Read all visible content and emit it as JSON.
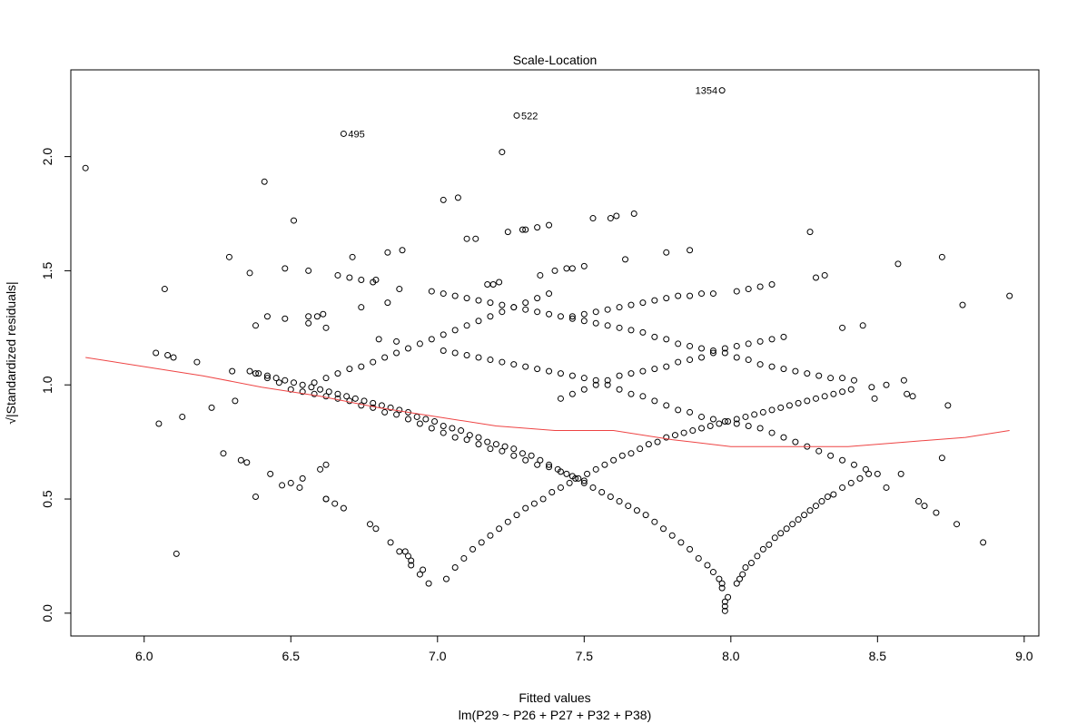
{
  "chart_data": {
    "type": "scatter",
    "title": "Scale-Location",
    "xlabel": "Fitted values",
    "subtitle": "lm(P29 ~ P26 + P27 + P32 + P38)",
    "ylabel": "√|Standardized residuals|",
    "xlim": [
      5.75,
      9.05
    ],
    "ylim": [
      -0.1,
      2.38
    ],
    "x_ticks": [
      "6.0",
      "6.5",
      "7.0",
      "7.5",
      "8.0",
      "8.5",
      "9.0"
    ],
    "x_tick_values": [
      6.0,
      6.5,
      7.0,
      7.5,
      8.0,
      8.5,
      9.0
    ],
    "y_ticks": [
      "0.0",
      "0.5",
      "1.0",
      "1.5",
      "2.0"
    ],
    "y_tick_values": [
      0.0,
      0.5,
      1.0,
      1.5,
      2.0
    ],
    "grid": false,
    "point_color": "#000000",
    "smooth_color": "#ee4444",
    "labeled_points": [
      {
        "label": "1354",
        "x": 7.97,
        "y": 2.29
      },
      {
        "label": "522",
        "x": 7.27,
        "y": 2.18
      },
      {
        "label": "495",
        "x": 6.68,
        "y": 2.1
      }
    ],
    "points": [
      [
        5.8,
        1.95
      ],
      [
        6.04,
        1.14
      ],
      [
        6.05,
        0.83
      ],
      [
        6.07,
        1.42
      ],
      [
        6.08,
        1.13
      ],
      [
        6.1,
        1.12
      ],
      [
        6.11,
        0.26
      ],
      [
        6.13,
        0.86
      ],
      [
        6.18,
        1.1
      ],
      [
        6.23,
        0.9
      ],
      [
        6.27,
        0.7
      ],
      [
        6.29,
        1.56
      ],
      [
        6.3,
        1.06
      ],
      [
        6.31,
        0.93
      ],
      [
        6.33,
        0.67
      ],
      [
        6.35,
        0.66
      ],
      [
        6.36,
        1.49
      ],
      [
        6.38,
        1.26
      ],
      [
        6.38,
        0.51
      ],
      [
        6.41,
        1.89
      ],
      [
        6.42,
        1.3
      ],
      [
        6.43,
        0.61
      ],
      [
        6.47,
        0.56
      ],
      [
        6.48,
        1.29
      ],
      [
        6.48,
        1.51
      ],
      [
        6.5,
        0.57
      ],
      [
        6.51,
        1.72
      ],
      [
        6.53,
        0.55
      ],
      [
        6.54,
        0.59
      ],
      [
        6.56,
        1.5
      ],
      [
        6.56,
        1.27
      ],
      [
        6.56,
        1.3
      ],
      [
        6.59,
        1.3
      ],
      [
        6.6,
        0.63
      ],
      [
        6.61,
        1.31
      ],
      [
        6.62,
        1.25
      ],
      [
        6.62,
        0.65
      ],
      [
        6.62,
        0.5
      ],
      [
        6.71,
        1.56
      ],
      [
        6.74,
        1.34
      ],
      [
        6.77,
        0.39
      ],
      [
        6.79,
        0.37
      ],
      [
        6.79,
        1.46
      ],
      [
        6.8,
        1.2
      ],
      [
        6.83,
        1.58
      ],
      [
        6.83,
        1.36
      ],
      [
        6.86,
        1.19
      ],
      [
        6.88,
        1.59
      ],
      [
        6.89,
        0.27
      ],
      [
        6.9,
        0.25
      ],
      [
        6.91,
        0.23
      ],
      [
        6.95,
        0.19
      ],
      [
        7.02,
        1.81
      ],
      [
        7.07,
        1.82
      ],
      [
        7.1,
        1.64
      ],
      [
        7.13,
        1.64
      ],
      [
        7.17,
        1.44
      ],
      [
        7.19,
        1.44
      ],
      [
        7.21,
        1.45
      ],
      [
        7.22,
        2.02
      ],
      [
        7.24,
        1.67
      ],
      [
        7.29,
        1.68
      ],
      [
        7.3,
        1.68
      ],
      [
        7.34,
        1.69
      ],
      [
        7.35,
        1.48
      ],
      [
        7.38,
        1.7
      ],
      [
        7.4,
        1.5
      ],
      [
        7.44,
        1.51
      ],
      [
        7.46,
        1.51
      ],
      [
        7.5,
        1.52
      ],
      [
        7.53,
        1.73
      ],
      [
        7.59,
        1.73
      ],
      [
        7.61,
        1.74
      ],
      [
        7.64,
        1.55
      ],
      [
        7.67,
        1.75
      ],
      [
        7.78,
        1.58
      ],
      [
        7.86,
        1.59
      ],
      [
        8.27,
        1.67
      ],
      [
        8.29,
        1.47
      ],
      [
        8.32,
        1.48
      ],
      [
        8.38,
        1.25
      ],
      [
        8.45,
        1.26
      ],
      [
        8.48,
        0.99
      ],
      [
        8.49,
        0.94
      ],
      [
        8.53,
        1.0
      ],
      [
        8.53,
        0.55
      ],
      [
        8.57,
        1.53
      ],
      [
        8.58,
        0.61
      ],
      [
        8.59,
        1.02
      ],
      [
        8.6,
        0.96
      ],
      [
        8.62,
        0.95
      ],
      [
        8.64,
        0.49
      ],
      [
        8.66,
        0.47
      ],
      [
        8.7,
        0.44
      ],
      [
        8.72,
        1.56
      ],
      [
        8.72,
        0.68
      ],
      [
        8.74,
        0.91
      ],
      [
        8.77,
        0.39
      ],
      [
        8.79,
        1.35
      ],
      [
        8.86,
        0.31
      ],
      [
        8.95,
        1.39
      ],
      [
        7.98,
        0.01
      ],
      [
        7.98,
        0.03
      ],
      [
        7.98,
        0.05
      ],
      [
        7.99,
        0.07
      ],
      [
        7.97,
        0.11
      ],
      [
        7.97,
        0.13
      ],
      [
        7.96,
        0.15
      ],
      [
        8.02,
        0.13
      ],
      [
        8.03,
        0.15
      ],
      [
        8.04,
        0.17
      ],
      [
        8.05,
        0.2
      ],
      [
        8.07,
        0.22
      ],
      [
        8.09,
        0.25
      ],
      [
        8.11,
        0.28
      ],
      [
        8.13,
        0.3
      ],
      [
        8.15,
        0.33
      ],
      [
        8.17,
        0.35
      ],
      [
        8.19,
        0.37
      ],
      [
        8.21,
        0.39
      ],
      [
        8.23,
        0.41
      ],
      [
        8.25,
        0.43
      ],
      [
        8.27,
        0.45
      ],
      [
        8.29,
        0.47
      ],
      [
        8.31,
        0.49
      ],
      [
        8.33,
        0.51
      ],
      [
        8.35,
        0.52
      ],
      [
        8.38,
        0.55
      ],
      [
        8.41,
        0.57
      ],
      [
        8.44,
        0.59
      ],
      [
        8.47,
        0.61
      ],
      [
        7.94,
        0.18
      ],
      [
        7.92,
        0.21
      ],
      [
        7.89,
        0.24
      ],
      [
        7.86,
        0.28
      ],
      [
        7.83,
        0.31
      ],
      [
        7.8,
        0.34
      ],
      [
        7.77,
        0.37
      ],
      [
        7.74,
        0.4
      ],
      [
        7.71,
        0.43
      ],
      [
        7.68,
        0.45
      ],
      [
        7.65,
        0.47
      ],
      [
        7.62,
        0.49
      ],
      [
        7.59,
        0.51
      ],
      [
        7.56,
        0.53
      ],
      [
        7.53,
        0.55
      ],
      [
        7.5,
        0.57
      ],
      [
        7.47,
        0.59
      ],
      [
        7.44,
        0.61
      ],
      [
        7.41,
        0.63
      ],
      [
        7.38,
        0.65
      ],
      [
        7.35,
        0.67
      ],
      [
        7.32,
        0.69
      ],
      [
        7.29,
        0.7
      ],
      [
        7.26,
        0.72
      ],
      [
        7.23,
        0.73
      ],
      [
        7.2,
        0.74
      ],
      [
        7.17,
        0.75
      ],
      [
        7.14,
        0.77
      ],
      [
        7.11,
        0.78
      ],
      [
        7.08,
        0.8
      ],
      [
        7.05,
        0.81
      ],
      [
        7.02,
        0.82
      ],
      [
        6.99,
        0.84
      ],
      [
        6.96,
        0.85
      ],
      [
        6.93,
        0.86
      ],
      [
        6.9,
        0.88
      ],
      [
        6.87,
        0.89
      ],
      [
        6.84,
        0.9
      ],
      [
        6.81,
        0.91
      ],
      [
        6.78,
        0.92
      ],
      [
        6.75,
        0.93
      ],
      [
        6.72,
        0.94
      ],
      [
        6.69,
        0.95
      ],
      [
        6.66,
        0.96
      ],
      [
        6.63,
        0.97
      ],
      [
        6.6,
        0.98
      ],
      [
        6.57,
        0.99
      ],
      [
        6.54,
        1.0
      ],
      [
        6.51,
        1.01
      ],
      [
        6.48,
        1.02
      ],
      [
        6.45,
        1.03
      ],
      [
        6.42,
        1.04
      ],
      [
        6.39,
        1.05
      ],
      [
        6.36,
        1.06
      ],
      [
        7.03,
        0.15
      ],
      [
        7.06,
        0.2
      ],
      [
        7.09,
        0.24
      ],
      [
        7.12,
        0.28
      ],
      [
        7.15,
        0.31
      ],
      [
        7.18,
        0.34
      ],
      [
        7.21,
        0.37
      ],
      [
        7.24,
        0.4
      ],
      [
        7.27,
        0.43
      ],
      [
        7.3,
        0.46
      ],
      [
        7.33,
        0.48
      ],
      [
        7.36,
        0.5
      ],
      [
        7.39,
        0.53
      ],
      [
        7.42,
        0.55
      ],
      [
        7.45,
        0.57
      ],
      [
        7.48,
        0.59
      ],
      [
        7.51,
        0.61
      ],
      [
        7.54,
        0.63
      ],
      [
        7.57,
        0.65
      ],
      [
        7.6,
        0.67
      ],
      [
        7.63,
        0.69
      ],
      [
        7.66,
        0.7
      ],
      [
        7.69,
        0.72
      ],
      [
        7.72,
        0.74
      ],
      [
        7.75,
        0.75
      ],
      [
        7.78,
        0.77
      ],
      [
        7.81,
        0.78
      ],
      [
        7.84,
        0.79
      ],
      [
        7.87,
        0.8
      ],
      [
        7.9,
        0.81
      ],
      [
        7.93,
        0.82
      ],
      [
        7.96,
        0.83
      ],
      [
        7.99,
        0.84
      ],
      [
        8.02,
        0.85
      ],
      [
        8.05,
        0.86
      ],
      [
        8.08,
        0.87
      ],
      [
        8.11,
        0.88
      ],
      [
        8.14,
        0.89
      ],
      [
        8.17,
        0.9
      ],
      [
        8.2,
        0.91
      ],
      [
        8.23,
        0.92
      ],
      [
        8.26,
        0.93
      ],
      [
        8.29,
        0.94
      ],
      [
        8.32,
        0.95
      ],
      [
        8.35,
        0.96
      ],
      [
        8.38,
        0.97
      ],
      [
        8.41,
        0.98
      ],
      [
        6.97,
        0.13
      ],
      [
        6.94,
        0.17
      ],
      [
        6.91,
        0.21
      ],
      [
        6.87,
        0.27
      ],
      [
        6.84,
        0.31
      ],
      [
        6.68,
        0.46
      ],
      [
        6.65,
        0.48
      ],
      [
        6.62,
        0.5
      ],
      [
        6.38,
        1.05
      ],
      [
        6.42,
        1.03
      ],
      [
        6.46,
        1.01
      ],
      [
        6.5,
        0.98
      ],
      [
        6.54,
        0.97
      ],
      [
        6.58,
        0.96
      ],
      [
        6.62,
        0.95
      ],
      [
        6.66,
        0.94
      ],
      [
        6.7,
        0.93
      ],
      [
        6.74,
        0.91
      ],
      [
        6.78,
        0.9
      ],
      [
        6.82,
        0.88
      ],
      [
        6.86,
        0.87
      ],
      [
        6.9,
        0.85
      ],
      [
        6.94,
        0.83
      ],
      [
        6.98,
        0.81
      ],
      [
        7.02,
        0.79
      ],
      [
        7.06,
        0.77
      ],
      [
        7.1,
        0.76
      ],
      [
        7.14,
        0.74
      ],
      [
        7.18,
        0.72
      ],
      [
        7.22,
        0.71
      ],
      [
        7.26,
        0.69
      ],
      [
        7.3,
        0.67
      ],
      [
        7.34,
        0.65
      ],
      [
        7.38,
        0.64
      ],
      [
        7.42,
        0.62
      ],
      [
        7.46,
        0.6
      ],
      [
        7.5,
        0.58
      ],
      [
        6.58,
        1.01
      ],
      [
        6.62,
        1.03
      ],
      [
        6.66,
        1.05
      ],
      [
        6.7,
        1.07
      ],
      [
        6.74,
        1.08
      ],
      [
        6.78,
        1.1
      ],
      [
        6.82,
        1.12
      ],
      [
        6.86,
        1.14
      ],
      [
        6.9,
        1.16
      ],
      [
        6.94,
        1.18
      ],
      [
        6.98,
        1.2
      ],
      [
        7.02,
        1.22
      ],
      [
        7.06,
        1.24
      ],
      [
        7.1,
        1.26
      ],
      [
        7.14,
        1.28
      ],
      [
        7.18,
        1.3
      ],
      [
        7.22,
        1.32
      ],
      [
        7.26,
        1.34
      ],
      [
        7.3,
        1.36
      ],
      [
        7.34,
        1.38
      ],
      [
        7.38,
        1.4
      ],
      [
        6.87,
        1.42
      ],
      [
        6.66,
        1.48
      ],
      [
        6.7,
        1.47
      ],
      [
        6.74,
        1.46
      ],
      [
        6.78,
        1.45
      ],
      [
        6.98,
        1.41
      ],
      [
        7.02,
        1.4
      ],
      [
        7.06,
        1.39
      ],
      [
        7.1,
        1.38
      ],
      [
        7.14,
        1.37
      ],
      [
        7.18,
        1.36
      ],
      [
        7.22,
        1.35
      ],
      [
        7.26,
        1.34
      ],
      [
        7.3,
        1.33
      ],
      [
        7.34,
        1.32
      ],
      [
        7.38,
        1.31
      ],
      [
        7.42,
        1.3
      ],
      [
        7.46,
        1.29
      ],
      [
        7.5,
        1.28
      ],
      [
        7.54,
        1.27
      ],
      [
        7.58,
        1.26
      ],
      [
        7.62,
        1.25
      ],
      [
        7.66,
        1.24
      ],
      [
        7.7,
        1.23
      ],
      [
        7.74,
        1.21
      ],
      [
        7.78,
        1.2
      ],
      [
        7.82,
        1.18
      ],
      [
        7.86,
        1.17
      ],
      [
        7.9,
        1.16
      ],
      [
        7.94,
        1.15
      ],
      [
        7.98,
        1.14
      ],
      [
        8.02,
        1.12
      ],
      [
        8.06,
        1.11
      ],
      [
        8.1,
        1.09
      ],
      [
        8.14,
        1.08
      ],
      [
        8.18,
        1.07
      ],
      [
        8.22,
        1.06
      ],
      [
        8.26,
        1.05
      ],
      [
        8.3,
        1.04
      ],
      [
        8.34,
        1.03
      ],
      [
        8.38,
        1.03
      ],
      [
        8.42,
        1.02
      ],
      [
        7.02,
        1.15
      ],
      [
        7.06,
        1.14
      ],
      [
        7.1,
        1.13
      ],
      [
        7.14,
        1.12
      ],
      [
        7.18,
        1.11
      ],
      [
        7.22,
        1.1
      ],
      [
        7.26,
        1.09
      ],
      [
        7.3,
        1.08
      ],
      [
        7.34,
        1.07
      ],
      [
        7.38,
        1.06
      ],
      [
        7.42,
        1.05
      ],
      [
        7.46,
        1.04
      ],
      [
        7.5,
        1.03
      ],
      [
        7.54,
        1.02
      ],
      [
        7.58,
        1.0
      ],
      [
        7.62,
        0.98
      ],
      [
        7.66,
        0.96
      ],
      [
        7.7,
        0.95
      ],
      [
        7.74,
        0.93
      ],
      [
        7.78,
        0.91
      ],
      [
        7.82,
        0.89
      ],
      [
        7.86,
        0.88
      ],
      [
        7.9,
        0.86
      ],
      [
        7.94,
        0.85
      ],
      [
        7.98,
        0.84
      ],
      [
        8.02,
        0.83
      ],
      [
        8.06,
        0.82
      ],
      [
        8.1,
        0.81
      ],
      [
        8.14,
        0.79
      ],
      [
        8.18,
        0.77
      ],
      [
        8.22,
        0.75
      ],
      [
        8.26,
        0.73
      ],
      [
        8.3,
        0.71
      ],
      [
        8.34,
        0.69
      ],
      [
        8.38,
        0.67
      ],
      [
        8.42,
        0.65
      ],
      [
        8.46,
        0.63
      ],
      [
        8.5,
        0.61
      ],
      [
        7.42,
        0.94
      ],
      [
        7.46,
        0.96
      ],
      [
        7.5,
        0.98
      ],
      [
        7.54,
        1.0
      ],
      [
        7.58,
        1.02
      ],
      [
        7.62,
        1.04
      ],
      [
        7.66,
        1.05
      ],
      [
        7.7,
        1.06
      ],
      [
        7.74,
        1.07
      ],
      [
        7.78,
        1.08
      ],
      [
        7.82,
        1.1
      ],
      [
        7.86,
        1.11
      ],
      [
        7.9,
        1.12
      ],
      [
        7.94,
        1.14
      ],
      [
        7.98,
        1.16
      ],
      [
        8.02,
        1.17
      ],
      [
        8.06,
        1.18
      ],
      [
        8.1,
        1.19
      ],
      [
        8.14,
        1.2
      ],
      [
        8.18,
        1.21
      ],
      [
        7.46,
        1.3
      ],
      [
        7.5,
        1.31
      ],
      [
        7.54,
        1.32
      ],
      [
        7.58,
        1.33
      ],
      [
        7.62,
        1.34
      ],
      [
        7.66,
        1.35
      ],
      [
        7.7,
        1.36
      ],
      [
        7.74,
        1.37
      ],
      [
        7.78,
        1.38
      ],
      [
        7.82,
        1.39
      ],
      [
        7.86,
        1.39
      ],
      [
        7.9,
        1.4
      ],
      [
        7.94,
        1.4
      ],
      [
        8.02,
        1.41
      ],
      [
        8.06,
        1.42
      ],
      [
        8.1,
        1.43
      ],
      [
        8.14,
        1.44
      ]
    ],
    "smooth_line": [
      [
        5.8,
        1.12
      ],
      [
        6.0,
        1.08
      ],
      [
        6.2,
        1.04
      ],
      [
        6.4,
        0.99
      ],
      [
        6.6,
        0.95
      ],
      [
        6.8,
        0.9
      ],
      [
        7.0,
        0.86
      ],
      [
        7.2,
        0.82
      ],
      [
        7.4,
        0.8
      ],
      [
        7.6,
        0.8
      ],
      [
        7.8,
        0.76
      ],
      [
        8.0,
        0.73
      ],
      [
        8.2,
        0.73
      ],
      [
        8.4,
        0.73
      ],
      [
        8.6,
        0.75
      ],
      [
        8.8,
        0.77
      ],
      [
        8.95,
        0.8
      ]
    ]
  }
}
